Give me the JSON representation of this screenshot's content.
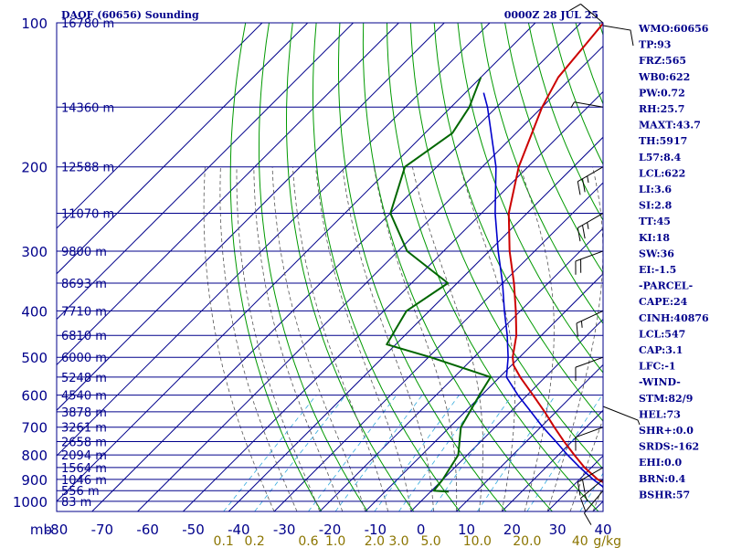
{
  "header": {
    "title": "DAOF (60656) Sounding",
    "date": "0000Z 28 JUL 25"
  },
  "axis": {
    "pressure_unit": "mb",
    "mixing_unit": "g/kg"
  },
  "colors": {
    "frame": "#00008b",
    "isotherm": "#00008b",
    "dry_adiabat": "#009900",
    "moist_adiabat": "#555555",
    "mixing_ratio": "#33aadd",
    "temperature": "#cc0000",
    "dewpoint": "#006600",
    "parcel": "#0000cc",
    "wind": "#000000",
    "pressure_text": "#00008b",
    "mixing_text": "#8b7500"
  },
  "chart_data": {
    "type": "line",
    "plot": "skew-t log-p",
    "xlim": [
      -80,
      40
    ],
    "ylim": [
      1000,
      100
    ],
    "pressure_levels": [
      {
        "p": 100,
        "label": "100"
      },
      {
        "p": 200,
        "label": "200"
      },
      {
        "p": 300,
        "label": "300"
      },
      {
        "p": 400,
        "label": "400"
      },
      {
        "p": 500,
        "label": "500"
      },
      {
        "p": 600,
        "label": "600"
      },
      {
        "p": 700,
        "label": "700"
      },
      {
        "p": 800,
        "label": "800"
      },
      {
        "p": 900,
        "label": "900"
      },
      {
        "p": 1000,
        "label": "1000"
      }
    ],
    "temperature_ticks": [
      {
        "t": -80,
        "label": "-80"
      },
      {
        "t": -70,
        "label": "-70"
      },
      {
        "t": -60,
        "label": "-60"
      },
      {
        "t": -50,
        "label": "-50"
      },
      {
        "t": -40,
        "label": "-40"
      },
      {
        "t": -30,
        "label": "-30"
      },
      {
        "t": -20,
        "label": "-20"
      },
      {
        "t": -10,
        "label": "-10"
      },
      {
        "t": 0,
        "label": "0"
      },
      {
        "t": 10,
        "label": "10"
      },
      {
        "t": 20,
        "label": "20"
      },
      {
        "t": 30,
        "label": "30"
      },
      {
        "t": 40,
        "label": "40"
      }
    ],
    "height_labels": [
      {
        "p": 100,
        "label": "16780 m"
      },
      {
        "p": 150,
        "label": "14360 m"
      },
      {
        "p": 200,
        "label": "12588 m"
      },
      {
        "p": 250,
        "label": "11070 m"
      },
      {
        "p": 300,
        "label": "9800 m"
      },
      {
        "p": 350,
        "label": "8693 m"
      },
      {
        "p": 400,
        "label": "7710 m"
      },
      {
        "p": 450,
        "label": "6810 m"
      },
      {
        "p": 500,
        "label": "6000 m"
      },
      {
        "p": 550,
        "label": "5248 m"
      },
      {
        "p": 600,
        "label": "4540 m"
      },
      {
        "p": 650,
        "label": "3878 m"
      },
      {
        "p": 700,
        "label": "3261 m"
      },
      {
        "p": 750,
        "label": "2658 m"
      },
      {
        "p": 800,
        "label": "2094 m"
      },
      {
        "p": 850,
        "label": "1564 m"
      },
      {
        "p": 900,
        "label": "1046 m"
      },
      {
        "p": 950,
        "label": "556 m"
      },
      {
        "p": 1000,
        "label": "83 m"
      }
    ],
    "mixing_ratios": [
      {
        "w": 0.1,
        "label": "0.1"
      },
      {
        "w": 0.2,
        "label": "0.2"
      },
      {
        "w": 0.6,
        "label": "0.6"
      },
      {
        "w": 1.0,
        "label": "1.0"
      },
      {
        "w": 2.0,
        "label": "2.0"
      },
      {
        "w": 3.0,
        "label": "3.0"
      },
      {
        "w": 5.0,
        "label": "5.0"
      },
      {
        "w": 10.0,
        "label": "10.0"
      },
      {
        "w": 20.0,
        "label": "20.0"
      },
      {
        "w": 40.0,
        "label": "40"
      }
    ],
    "temperature_profile": [
      [
        955,
        39.5
      ],
      [
        930,
        38.5
      ],
      [
        900,
        34.0
      ],
      [
        850,
        28.5
      ],
      [
        800,
        23.5
      ],
      [
        750,
        18.3
      ],
      [
        700,
        13.0
      ],
      [
        650,
        7.5
      ],
      [
        600,
        1.3
      ],
      [
        550,
        -5.5
      ],
      [
        520,
        -9.5
      ],
      [
        500,
        -11.5
      ],
      [
        450,
        -15.5
      ],
      [
        400,
        -21.0
      ],
      [
        350,
        -27.5
      ],
      [
        300,
        -35.5
      ],
      [
        250,
        -44.0
      ],
      [
        200,
        -52.0
      ],
      [
        150,
        -60.0
      ],
      [
        130,
        -63.0
      ],
      [
        100,
        -65.0
      ]
    ],
    "dewpoint_profile": [
      [
        955,
        4.0
      ],
      [
        950,
        0.5
      ],
      [
        900,
        0.0
      ],
      [
        800,
        -2.0
      ],
      [
        700,
        -7.5
      ],
      [
        600,
        -10.5
      ],
      [
        550,
        -12.0
      ],
      [
        500,
        -29.5
      ],
      [
        470,
        -42.0
      ],
      [
        400,
        -45.0
      ],
      [
        350,
        -42.0
      ],
      [
        300,
        -58.0
      ],
      [
        250,
        -70.0
      ],
      [
        200,
        -77.0
      ],
      [
        170,
        -74.0
      ],
      [
        150,
        -76.0
      ],
      [
        130,
        -80.0
      ]
    ],
    "parcel_profile": [
      [
        955,
        39.5
      ],
      [
        930,
        36.5
      ],
      [
        900,
        33.0
      ],
      [
        850,
        27.5
      ],
      [
        800,
        22.0
      ],
      [
        750,
        16.5
      ],
      [
        700,
        10.5
      ],
      [
        650,
        4.5
      ],
      [
        600,
        -2.0
      ],
      [
        550,
        -8.5
      ],
      [
        500,
        -12.5
      ],
      [
        450,
        -17.5
      ],
      [
        400,
        -23.5
      ],
      [
        350,
        -30.0
      ],
      [
        300,
        -38.0
      ],
      [
        250,
        -47.0
      ],
      [
        200,
        -57.0
      ],
      [
        150,
        -72.0
      ],
      [
        140,
        -76.0
      ]
    ],
    "wind_barbs": [
      {
        "p": 100,
        "dir": 310,
        "speed": 10
      },
      {
        "p": 150,
        "dir": 280,
        "speed": 5
      },
      {
        "p": 200,
        "dir": 240,
        "speed": 25
      },
      {
        "p": 250,
        "dir": 240,
        "speed": 25
      },
      {
        "p": 300,
        "dir": 250,
        "speed": 20
      },
      {
        "p": 400,
        "dir": 245,
        "speed": 15
      },
      {
        "p": 500,
        "dir": 250,
        "speed": 10
      },
      {
        "p": 700,
        "dir": 250,
        "speed": 10
      },
      {
        "p": 850,
        "dir": 240,
        "speed": 20
      },
      {
        "p": 900,
        "dir": 230,
        "speed": 15
      },
      {
        "p": 950,
        "dir": 220,
        "speed": 10
      }
    ]
  },
  "indices": [
    "WMO:60656",
    "TP:93",
    "FRZ:565",
    "WB0:622",
    "PW:0.72",
    "RH:25.7",
    "MAXT:43.7",
    "TH:5917",
    "L57:8.4",
    "LCL:622",
    "LI:3.6",
    "SI:2.8",
    "TT:45",
    "KI:18",
    "SW:36",
    "EI:-1.5",
    "-PARCEL-",
    "CAPE:24",
    "CINH:40876",
    "LCL:547",
    "CAP:3.1",
    "LFC:-1",
    "-WIND-",
    "STM:82/9",
    "HEL:73",
    "SHR+:0.0",
    "SRDS:-162",
    "EHI:0.0",
    "BRN:0.4",
    "BSHR:57"
  ]
}
